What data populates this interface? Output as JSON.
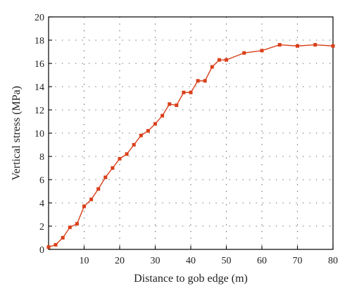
{
  "chart_data": {
    "type": "line",
    "xlabel": "Distance to gob edge (m)",
    "ylabel": "Vertical stress (MPa)",
    "xlim": [
      0,
      80
    ],
    "ylim": [
      0,
      20
    ],
    "x_ticks": [
      10,
      20,
      30,
      40,
      50,
      60,
      70,
      80
    ],
    "y_ticks": [
      0,
      2,
      4,
      6,
      8,
      10,
      12,
      14,
      16,
      18,
      20
    ],
    "grid": true,
    "series_color": "#d9401a",
    "marker": "square",
    "series": [
      {
        "x": [
          0,
          2,
          4,
          6,
          8,
          10,
          12,
          14,
          16,
          18,
          20,
          22,
          24,
          26,
          28,
          30,
          32,
          34,
          36,
          38,
          40,
          42,
          44,
          46,
          48,
          50,
          55,
          60,
          65,
          70,
          75,
          80
        ],
        "values": [
          0.2,
          0.4,
          1.0,
          1.9,
          2.2,
          3.7,
          4.3,
          5.2,
          6.2,
          7.0,
          7.8,
          8.2,
          9.0,
          9.8,
          10.2,
          10.8,
          11.5,
          12.5,
          12.4,
          13.5,
          13.5,
          14.5,
          14.5,
          15.7,
          16.3,
          16.3,
          16.9,
          17.1,
          17.6,
          17.5,
          17.6,
          17.5
        ]
      }
    ]
  }
}
